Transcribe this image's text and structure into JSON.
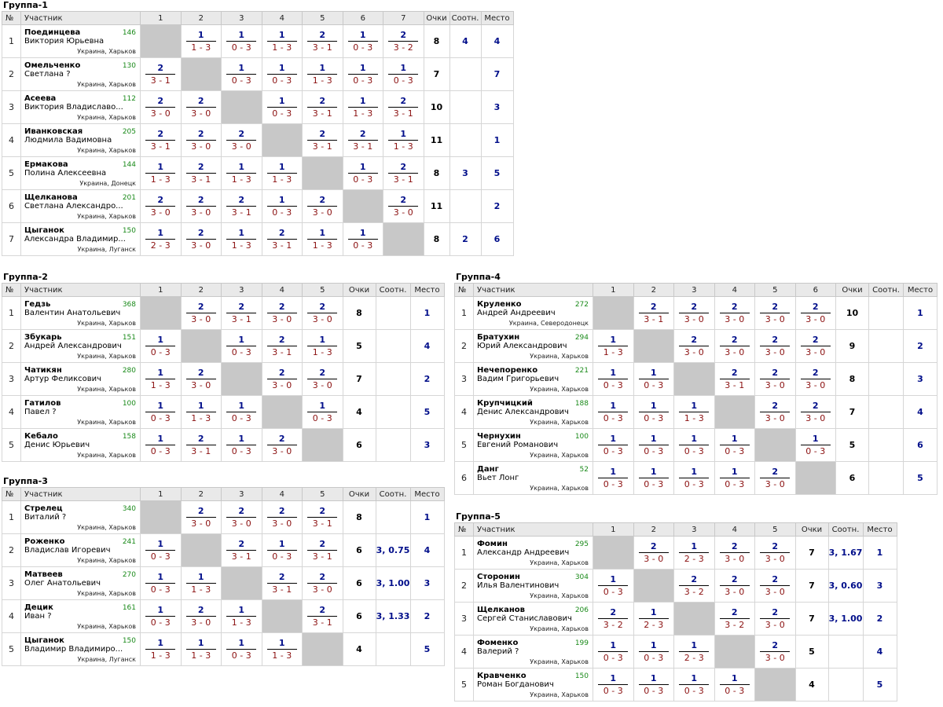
{
  "header": {
    "num": "№",
    "participant": "Участник",
    "points": "Очки",
    "ratio": "Соотн.",
    "place": "Место"
  },
  "groups": [
    {
      "title": "Группа-1",
      "players": [
        {
          "surname": "Поединцева",
          "name": "Виктория Юрьевна",
          "rating": "146",
          "loc": "Украина, Харьков",
          "results": [
            null,
            {
              "w": "1",
              "s": "1 - 3"
            },
            {
              "w": "1",
              "s": "0 - 3"
            },
            {
              "w": "1",
              "s": "1 - 3"
            },
            {
              "w": "2",
              "s": "3 - 1"
            },
            {
              "w": "1",
              "s": "0 - 3"
            },
            {
              "w": "2",
              "s": "3 - 2"
            }
          ],
          "points": "8",
          "ratio": "4",
          "place": "4"
        },
        {
          "surname": "Омельченко",
          "name": "Светлана ?",
          "rating": "130",
          "loc": "Украина, Харьков",
          "results": [
            {
              "w": "2",
              "s": "3 - 1"
            },
            null,
            {
              "w": "1",
              "s": "0 - 3"
            },
            {
              "w": "1",
              "s": "0 - 3"
            },
            {
              "w": "1",
              "s": "1 - 3"
            },
            {
              "w": "1",
              "s": "0 - 3"
            },
            {
              "w": "1",
              "s": "0 - 3"
            }
          ],
          "points": "7",
          "ratio": "",
          "place": "7"
        },
        {
          "surname": "Асеева",
          "name": "Виктория Владиславо...",
          "rating": "112",
          "loc": "Украина, Харьков",
          "results": [
            {
              "w": "2",
              "s": "3 - 0"
            },
            {
              "w": "2",
              "s": "3 - 0"
            },
            null,
            {
              "w": "1",
              "s": "0 - 3"
            },
            {
              "w": "2",
              "s": "3 - 1"
            },
            {
              "w": "1",
              "s": "1 - 3"
            },
            {
              "w": "2",
              "s": "3 - 1"
            }
          ],
          "points": "10",
          "ratio": "",
          "place": "3"
        },
        {
          "surname": "Иванковская",
          "name": "Людмила Вадимовна",
          "rating": "205",
          "loc": "Украина, Харьков",
          "results": [
            {
              "w": "2",
              "s": "3 - 1"
            },
            {
              "w": "2",
              "s": "3 - 0"
            },
            {
              "w": "2",
              "s": "3 - 0"
            },
            null,
            {
              "w": "2",
              "s": "3 - 1"
            },
            {
              "w": "2",
              "s": "3 - 1"
            },
            {
              "w": "1",
              "s": "1 - 3"
            }
          ],
          "points": "11",
          "ratio": "",
          "place": "1"
        },
        {
          "surname": "Ермакова",
          "name": "Полина Алексеевна",
          "rating": "144",
          "loc": "Украина, Донецк",
          "results": [
            {
              "w": "1",
              "s": "1 - 3"
            },
            {
              "w": "2",
              "s": "3 - 1"
            },
            {
              "w": "1",
              "s": "1 - 3"
            },
            {
              "w": "1",
              "s": "1 - 3"
            },
            null,
            {
              "w": "1",
              "s": "0 - 3"
            },
            {
              "w": "2",
              "s": "3 - 1"
            }
          ],
          "points": "8",
          "ratio": "3",
          "place": "5"
        },
        {
          "surname": "Щелканова",
          "name": "Светлана Александро...",
          "rating": "201",
          "loc": "Украина, Харьков",
          "results": [
            {
              "w": "2",
              "s": "3 - 0"
            },
            {
              "w": "2",
              "s": "3 - 0"
            },
            {
              "w": "2",
              "s": "3 - 1"
            },
            {
              "w": "1",
              "s": "0 - 3"
            },
            {
              "w": "2",
              "s": "3 - 0"
            },
            null,
            {
              "w": "2",
              "s": "3 - 0"
            }
          ],
          "points": "11",
          "ratio": "",
          "place": "2"
        },
        {
          "surname": "Цыганок",
          "name": "Александра Владимир...",
          "rating": "150",
          "loc": "Украина, Луганск",
          "results": [
            {
              "w": "1",
              "s": "2 - 3"
            },
            {
              "w": "2",
              "s": "3 - 0"
            },
            {
              "w": "1",
              "s": "1 - 3"
            },
            {
              "w": "2",
              "s": "3 - 1"
            },
            {
              "w": "1",
              "s": "1 - 3"
            },
            {
              "w": "1",
              "s": "0 - 3"
            },
            null
          ],
          "points": "8",
          "ratio": "2",
          "place": "6"
        }
      ]
    },
    {
      "title": "Группа-2",
      "players": [
        {
          "surname": "Гедзь",
          "name": "Валентин Анатольевич",
          "rating": "368",
          "loc": "Украина, Харьков",
          "results": [
            null,
            {
              "w": "2",
              "s": "3 - 0"
            },
            {
              "w": "2",
              "s": "3 - 1"
            },
            {
              "w": "2",
              "s": "3 - 0"
            },
            {
              "w": "2",
              "s": "3 - 0"
            }
          ],
          "points": "8",
          "ratio": "",
          "place": "1"
        },
        {
          "surname": "Збукарь",
          "name": "Андрей Александрович",
          "rating": "151",
          "loc": "Украина, Харьков",
          "results": [
            {
              "w": "1",
              "s": "0 - 3"
            },
            null,
            {
              "w": "1",
              "s": "0 - 3"
            },
            {
              "w": "2",
              "s": "3 - 1"
            },
            {
              "w": "1",
              "s": "1 - 3"
            }
          ],
          "points": "5",
          "ratio": "",
          "place": "4"
        },
        {
          "surname": "Чатикян",
          "name": "Артур Феликсович",
          "rating": "280",
          "loc": "Украина, Харьков",
          "results": [
            {
              "w": "1",
              "s": "1 - 3"
            },
            {
              "w": "2",
              "s": "3 - 0"
            },
            null,
            {
              "w": "2",
              "s": "3 - 0"
            },
            {
              "w": "2",
              "s": "3 - 0"
            }
          ],
          "points": "7",
          "ratio": "",
          "place": "2"
        },
        {
          "surname": "Гатилов",
          "name": "Павел ?",
          "rating": "100",
          "loc": "Украина, Харьков",
          "results": [
            {
              "w": "1",
              "s": "0 - 3"
            },
            {
              "w": "1",
              "s": "1 - 3"
            },
            {
              "w": "1",
              "s": "0 - 3"
            },
            null,
            {
              "w": "1",
              "s": "0 - 3"
            }
          ],
          "points": "4",
          "ratio": "",
          "place": "5"
        },
        {
          "surname": "Кебало",
          "name": "Денис Юрьевич",
          "rating": "158",
          "loc": "Украина, Харьков",
          "results": [
            {
              "w": "1",
              "s": "0 - 3"
            },
            {
              "w": "2",
              "s": "3 - 1"
            },
            {
              "w": "1",
              "s": "0 - 3"
            },
            {
              "w": "2",
              "s": "3 - 0"
            },
            null
          ],
          "points": "6",
          "ratio": "",
          "place": "3"
        }
      ]
    },
    {
      "title": "Группа-3",
      "players": [
        {
          "surname": "Стрелец",
          "name": "Виталий ?",
          "rating": "340",
          "loc": "Украина, Харьков",
          "results": [
            null,
            {
              "w": "2",
              "s": "3 - 0"
            },
            {
              "w": "2",
              "s": "3 - 0"
            },
            {
              "w": "2",
              "s": "3 - 0"
            },
            {
              "w": "2",
              "s": "3 - 1"
            }
          ],
          "points": "8",
          "ratio": "",
          "place": "1"
        },
        {
          "surname": "Роженко",
          "name": "Владислав Игоревич",
          "rating": "241",
          "loc": "Украина, Харьков",
          "results": [
            {
              "w": "1",
              "s": "0 - 3"
            },
            null,
            {
              "w": "2",
              "s": "3 - 1"
            },
            {
              "w": "1",
              "s": "0 - 3"
            },
            {
              "w": "2",
              "s": "3 - 1"
            }
          ],
          "points": "6",
          "ratio": "3, 0.75",
          "place": "4"
        },
        {
          "surname": "Матвеев",
          "name": "Олег Анатольевич",
          "rating": "270",
          "loc": "Украина, Харьков",
          "results": [
            {
              "w": "1",
              "s": "0 - 3"
            },
            {
              "w": "1",
              "s": "1 - 3"
            },
            null,
            {
              "w": "2",
              "s": "3 - 1"
            },
            {
              "w": "2",
              "s": "3 - 0"
            }
          ],
          "points": "6",
          "ratio": "3, 1.00",
          "place": "3"
        },
        {
          "surname": "Децик",
          "name": "Иван ?",
          "rating": "161",
          "loc": "Украина, Харьков",
          "results": [
            {
              "w": "1",
              "s": "0 - 3"
            },
            {
              "w": "2",
              "s": "3 - 0"
            },
            {
              "w": "1",
              "s": "1 - 3"
            },
            null,
            {
              "w": "2",
              "s": "3 - 1"
            }
          ],
          "points": "6",
          "ratio": "3, 1.33",
          "place": "2"
        },
        {
          "surname": "Цыганок",
          "name": "Владимир Владимиро...",
          "rating": "150",
          "loc": "Украина, Луганск",
          "results": [
            {
              "w": "1",
              "s": "1 - 3"
            },
            {
              "w": "1",
              "s": "1 - 3"
            },
            {
              "w": "1",
              "s": "0 - 3"
            },
            {
              "w": "1",
              "s": "1 - 3"
            },
            null
          ],
          "points": "4",
          "ratio": "",
          "place": "5"
        }
      ]
    },
    {
      "title": "Группа-4",
      "players": [
        {
          "surname": "Круленко",
          "name": "Андрей Андреевич",
          "rating": "272",
          "loc": "Украина, Северодонецк",
          "results": [
            null,
            {
              "w": "2",
              "s": "3 - 1"
            },
            {
              "w": "2",
              "s": "3 - 0"
            },
            {
              "w": "2",
              "s": "3 - 0"
            },
            {
              "w": "2",
              "s": "3 - 0"
            },
            {
              "w": "2",
              "s": "3 - 0"
            }
          ],
          "points": "10",
          "ratio": "",
          "place": "1"
        },
        {
          "surname": "Братухин",
          "name": "Юрий Александрович",
          "rating": "294",
          "loc": "Украина, Харьков",
          "results": [
            {
              "w": "1",
              "s": "1 - 3"
            },
            null,
            {
              "w": "2",
              "s": "3 - 0"
            },
            {
              "w": "2",
              "s": "3 - 0"
            },
            {
              "w": "2",
              "s": "3 - 0"
            },
            {
              "w": "2",
              "s": "3 - 0"
            }
          ],
          "points": "9",
          "ratio": "",
          "place": "2"
        },
        {
          "surname": "Нечепоренко",
          "name": "Вадим Григорьевич",
          "rating": "221",
          "loc": "Украина, Харьков",
          "results": [
            {
              "w": "1",
              "s": "0 - 3"
            },
            {
              "w": "1",
              "s": "0 - 3"
            },
            null,
            {
              "w": "2",
              "s": "3 - 1"
            },
            {
              "w": "2",
              "s": "3 - 0"
            },
            {
              "w": "2",
              "s": "3 - 0"
            }
          ],
          "points": "8",
          "ratio": "",
          "place": "3"
        },
        {
          "surname": "Крупчицкий",
          "name": "Денис Александрович",
          "rating": "188",
          "loc": "Украина, Харьков",
          "results": [
            {
              "w": "1",
              "s": "0 - 3"
            },
            {
              "w": "1",
              "s": "0 - 3"
            },
            {
              "w": "1",
              "s": "1 - 3"
            },
            null,
            {
              "w": "2",
              "s": "3 - 0"
            },
            {
              "w": "2",
              "s": "3 - 0"
            }
          ],
          "points": "7",
          "ratio": "",
          "place": "4"
        },
        {
          "surname": "Чернухин",
          "name": "Евгений Романович",
          "rating": "100",
          "loc": "Украина, Харьков",
          "results": [
            {
              "w": "1",
              "s": "0 - 3"
            },
            {
              "w": "1",
              "s": "0 - 3"
            },
            {
              "w": "1",
              "s": "0 - 3"
            },
            {
              "w": "1",
              "s": "0 - 3"
            },
            null,
            {
              "w": "1",
              "s": "0 - 3"
            }
          ],
          "points": "5",
          "ratio": "",
          "place": "6"
        },
        {
          "surname": "Данг",
          "name": "Вьет Лонг",
          "rating": "52",
          "loc": "Украина, Харьков",
          "results": [
            {
              "w": "1",
              "s": "0 - 3"
            },
            {
              "w": "1",
              "s": "0 - 3"
            },
            {
              "w": "1",
              "s": "0 - 3"
            },
            {
              "w": "1",
              "s": "0 - 3"
            },
            {
              "w": "2",
              "s": "3 - 0"
            },
            null
          ],
          "points": "6",
          "ratio": "",
          "place": "5"
        }
      ]
    },
    {
      "title": "Группа-5",
      "players": [
        {
          "surname": "Фомин",
          "name": "Александр Андреевич",
          "rating": "295",
          "loc": "Украина, Харьков",
          "results": [
            null,
            {
              "w": "2",
              "s": "3 - 0"
            },
            {
              "w": "1",
              "s": "2 - 3"
            },
            {
              "w": "2",
              "s": "3 - 0"
            },
            {
              "w": "2",
              "s": "3 - 0"
            }
          ],
          "points": "7",
          "ratio": "3, 1.67",
          "place": "1"
        },
        {
          "surname": "Сторонин",
          "name": "Илья Валентинович",
          "rating": "304",
          "loc": "Украина, Харьков",
          "results": [
            {
              "w": "1",
              "s": "0 - 3"
            },
            null,
            {
              "w": "2",
              "s": "3 - 2"
            },
            {
              "w": "2",
              "s": "3 - 0"
            },
            {
              "w": "2",
              "s": "3 - 0"
            }
          ],
          "points": "7",
          "ratio": "3, 0.60",
          "place": "3"
        },
        {
          "surname": "Щелканов",
          "name": "Сергей Станиславович",
          "rating": "206",
          "loc": "Украина, Харьков",
          "results": [
            {
              "w": "2",
              "s": "3 - 2"
            },
            {
              "w": "1",
              "s": "2 - 3"
            },
            null,
            {
              "w": "2",
              "s": "3 - 2"
            },
            {
              "w": "2",
              "s": "3 - 0"
            }
          ],
          "points": "7",
          "ratio": "3, 1.00",
          "place": "2"
        },
        {
          "surname": "Фоменко",
          "name": "Валерий ?",
          "rating": "199",
          "loc": "Украина, Харьков",
          "results": [
            {
              "w": "1",
              "s": "0 - 3"
            },
            {
              "w": "1",
              "s": "0 - 3"
            },
            {
              "w": "1",
              "s": "2 - 3"
            },
            null,
            {
              "w": "2",
              "s": "3 - 0"
            }
          ],
          "points": "5",
          "ratio": "",
          "place": "4"
        },
        {
          "surname": "Кравченко",
          "name": "Роман Богданович",
          "rating": "150",
          "loc": "Украина, Харьков",
          "results": [
            {
              "w": "1",
              "s": "0 - 3"
            },
            {
              "w": "1",
              "s": "0 - 3"
            },
            {
              "w": "1",
              "s": "0 - 3"
            },
            {
              "w": "1",
              "s": "0 - 3"
            },
            null
          ],
          "points": "4",
          "ratio": "",
          "place": "5"
        }
      ]
    }
  ]
}
